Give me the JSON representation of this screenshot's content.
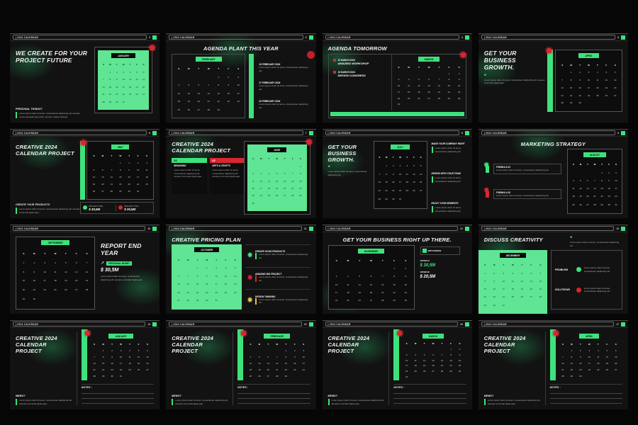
{
  "bar": {
    "label": "| 2024 CALENDAR"
  },
  "weekdays": [
    "S",
    "M",
    "T",
    "W",
    "T",
    "F",
    "S"
  ],
  "colors": {
    "accent": "#3ee27c",
    "card_green": "#5fe593",
    "red": "#d92631",
    "yellow": "#e3c94e"
  },
  "lorem": {
    "s": "Lorem ipsum dolor sit amet, consectetuer adipiscing elit.",
    "m": "Lorem ipsum dolor sit amet, consectetuer adipiscing elit. Aenean commodo ligula eget.",
    "l": "Lorem ipsum dolor sit amet, consectetuer adipiscing elit. Aenean commodo ligula eget dolor. Aenean massa natoque."
  },
  "months": {
    "january": {
      "name": "JANUARY",
      "weeks": [
        [
          "",
          "1",
          "2",
          "3",
          "4",
          "5",
          "6"
        ],
        [
          "7",
          "8",
          "9",
          "10",
          "11",
          "12",
          "13"
        ],
        [
          "14",
          "15",
          "16",
          "17",
          "18",
          "19",
          "20"
        ],
        [
          "21",
          "22",
          "23",
          "24",
          "25",
          "26",
          "27"
        ],
        [
          "28",
          "29",
          "30",
          "31",
          "",
          "",
          ""
        ]
      ]
    },
    "february": {
      "name": "FEBRUARY",
      "weeks": [
        [
          "",
          "",
          "",
          "",
          "1",
          "2",
          "3"
        ],
        [
          "4",
          "5",
          "6",
          "7",
          "8",
          "9",
          "10"
        ],
        [
          "11",
          "12",
          "13",
          "14",
          "15",
          "16",
          "17"
        ],
        [
          "18",
          "19",
          "20",
          "21",
          "22",
          "23",
          "24"
        ],
        [
          "25",
          "26",
          "27",
          "28",
          "29",
          "",
          ""
        ]
      ]
    },
    "march": {
      "name": "MARCH",
      "weeks": [
        [
          "",
          "",
          "",
          "",
          "",
          "1",
          "2"
        ],
        [
          "3",
          "4",
          "5",
          "6",
          "7",
          "8",
          "9"
        ],
        [
          "10",
          "11",
          "12",
          "13",
          "14",
          "15",
          "16"
        ],
        [
          "17",
          "18",
          "19",
          "20",
          "21",
          "22",
          "23"
        ],
        [
          "24",
          "25",
          "26",
          "27",
          "28",
          "29",
          "30"
        ],
        [
          "31",
          "",
          "",
          "",
          "",
          "",
          ""
        ]
      ]
    },
    "april": {
      "name": "APRIL",
      "weeks": [
        [
          "",
          "1",
          "2",
          "3",
          "4",
          "5",
          "6"
        ],
        [
          "7",
          "8",
          "9",
          "10",
          "11",
          "12",
          "13"
        ],
        [
          "14",
          "15",
          "16",
          "17",
          "18",
          "19",
          "20"
        ],
        [
          "21",
          "22",
          "23",
          "24",
          "25",
          "26",
          "27"
        ],
        [
          "28",
          "29",
          "30",
          "",
          "",
          "",
          ""
        ]
      ]
    },
    "may": {
      "name": "MAY",
      "weeks": [
        [
          "",
          "",
          "",
          "1",
          "2",
          "3",
          "4"
        ],
        [
          "5",
          "6",
          "7",
          "8",
          "9",
          "10",
          "11"
        ],
        [
          "12",
          "13",
          "14",
          "15",
          "16",
          "17",
          "18"
        ],
        [
          "19",
          "20",
          "21",
          "22",
          "23",
          "24",
          "25"
        ],
        [
          "26",
          "27",
          "28",
          "29",
          "30",
          "31",
          ""
        ]
      ]
    },
    "june": {
      "name": "JUNE",
      "weeks": [
        [
          "",
          "",
          "",
          "",
          "",
          "",
          "1"
        ],
        [
          "2",
          "3",
          "4",
          "5",
          "6",
          "7",
          "8"
        ],
        [
          "9",
          "10",
          "11",
          "12",
          "13",
          "14",
          "15"
        ],
        [
          "16",
          "17",
          "18",
          "19",
          "20",
          "21",
          "22"
        ],
        [
          "23",
          "24",
          "25",
          "26",
          "27",
          "28",
          "29"
        ],
        [
          "30",
          "",
          "",
          "",
          "",
          "",
          ""
        ]
      ]
    },
    "july": {
      "name": "JULY",
      "weeks": [
        [
          "",
          "1",
          "2",
          "3",
          "4",
          "5",
          "6"
        ],
        [
          "7",
          "8",
          "9",
          "10",
          "11",
          "12",
          "13"
        ],
        [
          "14",
          "15",
          "16",
          "17",
          "18",
          "19",
          "20"
        ],
        [
          "21",
          "22",
          "23",
          "24",
          "25",
          "26",
          "27"
        ],
        [
          "28",
          "29",
          "30",
          "31",
          "",
          "",
          ""
        ]
      ]
    },
    "august": {
      "name": "AUGUST",
      "weeks": [
        [
          "",
          "",
          "",
          "",
          "1",
          "2",
          "3"
        ],
        [
          "4",
          "5",
          "6",
          "7",
          "8",
          "9",
          "10"
        ],
        [
          "11",
          "12",
          "13",
          "14",
          "15",
          "16",
          "17"
        ],
        [
          "18",
          "19",
          "20",
          "21",
          "22",
          "23",
          "24"
        ],
        [
          "25",
          "26",
          "27",
          "28",
          "29",
          "30",
          "31"
        ]
      ]
    },
    "september": {
      "name": "SEPTEMBER",
      "weeks": [
        [
          "1",
          "2",
          "3",
          "4",
          "5",
          "6",
          "7"
        ],
        [
          "8",
          "9",
          "10",
          "11",
          "12",
          "13",
          "14"
        ],
        [
          "15",
          "16",
          "17",
          "18",
          "19",
          "20",
          "21"
        ],
        [
          "22",
          "23",
          "24",
          "25",
          "26",
          "27",
          "28"
        ],
        [
          "29",
          "30",
          "",
          "",
          "",
          "",
          ""
        ]
      ]
    },
    "october": {
      "name": "OCTOBER",
      "weeks": [
        [
          "",
          "",
          "1",
          "2",
          "3",
          "4",
          "5"
        ],
        [
          "6",
          "7",
          "8",
          "9",
          "10",
          "11",
          "12"
        ],
        [
          "13",
          "14",
          "15",
          "16",
          "17",
          "18",
          "19"
        ],
        [
          "20",
          "21",
          "22",
          "23",
          "24",
          "25",
          "26"
        ],
        [
          "27",
          "28",
          "29",
          "30",
          "31",
          "",
          ""
        ]
      ]
    },
    "november": {
      "name": "NOVEMBER",
      "weeks": [
        [
          "",
          "",
          "",
          "",
          "",
          "1",
          "2"
        ],
        [
          "3",
          "4",
          "5",
          "6",
          "7",
          "8",
          "9"
        ],
        [
          "10",
          "11",
          "12",
          "13",
          "14",
          "15",
          "16"
        ],
        [
          "17",
          "18",
          "19",
          "20",
          "21",
          "22",
          "23"
        ],
        [
          "24",
          "25",
          "26",
          "27",
          "28",
          "29",
          "30"
        ]
      ]
    },
    "december": {
      "name": "DECEMBER",
      "weeks": [
        [
          "1",
          "2",
          "3",
          "4",
          "5",
          "6",
          "7"
        ],
        [
          "8",
          "9",
          "10",
          "11",
          "12",
          "13",
          "14"
        ],
        [
          "15",
          "16",
          "17",
          "18",
          "19",
          "20",
          "21"
        ],
        [
          "22",
          "23",
          "24",
          "25",
          "26",
          "27",
          "28"
        ],
        [
          "29",
          "30",
          "31",
          "",
          "",
          "",
          ""
        ]
      ]
    }
  },
  "slides": [
    {
      "page": "2",
      "title": "WE CREATE FOR YOUR PROJECT FUTURE",
      "label": "PERSONAL THINGS?"
    },
    {
      "page": "3",
      "title": "AGENDA PLANT THIS YEAR",
      "agenda": [
        {
          "date": "10 FEBRUARY 2024"
        },
        {
          "date": "17 FEBRUARY 2024"
        },
        {
          "date": "20 FEBRUARY 2024"
        }
      ]
    },
    {
      "page": "4",
      "title": "AGENDA TOMORROW",
      "items": [
        {
          "date": "12 MARCH 2024",
          "name": "AMAZING WORKSHOP"
        },
        {
          "date": "19 MARCH 2024",
          "name": "DESIGN CONGRESS"
        }
      ]
    },
    {
      "page": "5",
      "title": "GET YOUR BUSINESS GROWTH."
    },
    {
      "page": "6",
      "title": "CREATIVE 2024 CALENDAR PROJECT",
      "label": "CREATE YOUR PRODUCTS",
      "prices": [
        {
          "name": "PROJECT ONE",
          "value": "$ 30,5M"
        },
        {
          "name": "PROJECT TWO",
          "value": "$ 30,5M"
        }
      ]
    },
    {
      "page": "7",
      "title": "CREATIVE 2024 CALENDAR PROJECT",
      "cards": [
        {
          "num": "01",
          "name": "BRANDING"
        },
        {
          "num": "02",
          "name": "ARTS & CRAFTS"
        }
      ]
    },
    {
      "page": "8",
      "title": "GET YOUR BUSINESS GROWTH.",
      "points": [
        {
          "heading": "MAKE YOUR COMPANY RIGHT"
        },
        {
          "heading": "DESIGN WITH YOUR TEAM"
        },
        {
          "heading": "ENJOY YOUR MOMENTS"
        }
      ]
    },
    {
      "page": "9",
      "title": "MARKETING STRATEGY",
      "formulas": [
        {
          "name": "FORMULA 01"
        },
        {
          "name": "FORMULA 02"
        }
      ]
    },
    {
      "page": "10",
      "title": "REPORT END YEAR",
      "badge": "PERSONAL MONEY",
      "value": "$ 30,5M",
      "arrow": "↗"
    },
    {
      "page": "11",
      "title": "CREATIVE PRICING PLAN",
      "plans": [
        {
          "heading": "CREATE GOOD PRODUCTS"
        },
        {
          "heading": "AMAZING BIG PROJECT"
        },
        {
          "heading": "DESIGN THINKING"
        }
      ]
    },
    {
      "page": "12",
      "title": "GET YOUR BUSINESS RIGHT UP THERE.",
      "chip": "WITH DESIGN",
      "offers": [
        {
          "label": "OFFER 01",
          "value": "$ 30,5M"
        },
        {
          "label": "OFFER 02",
          "value": "$ 20,5M"
        }
      ]
    },
    {
      "page": "13",
      "title": "DISCUSS CREATIVITY",
      "rows": [
        {
          "label": "PROBLEM"
        },
        {
          "label": "SOLUTIONS"
        }
      ]
    },
    {
      "page": "14",
      "title": "CREATIVE 2024 CALENDAR PROJECT",
      "label": "MEMO?",
      "notes": "NOTES :"
    },
    {
      "page": "15",
      "title": "CREATIVE 2024 CALENDAR PROJECT",
      "label": "MEMO?",
      "notes": "NOTES :"
    },
    {
      "page": "16",
      "title": "CREATIVE 2024 CALENDAR PROJECT",
      "label": "MEMO?",
      "notes": "NOTES :"
    },
    {
      "page": "17",
      "title": "CREATIVE 2024 CALENDAR PROJECT",
      "label": "MEMO?",
      "notes": "NOTES :"
    }
  ]
}
